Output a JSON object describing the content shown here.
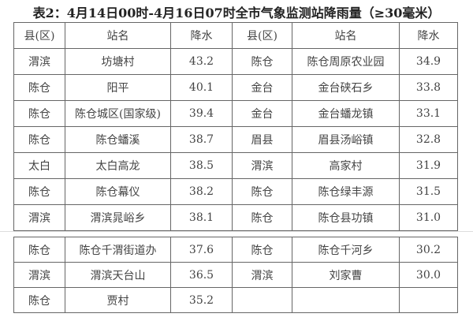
{
  "title": "表2：4月14日00时-4月16日07时全市气象监测站降雨量（≥30毫米）",
  "headers": [
    "县(区)",
    "站名",
    "降水",
    "县(区)",
    "站名",
    "降水"
  ],
  "table1_rows": [
    [
      "渭滨",
      "坊塘村",
      "43.2",
      "陈仓",
      "陈仓周原农业园",
      "34.9"
    ],
    [
      "陈仓",
      "阳平",
      "40.1",
      "金台",
      "金台硖石乡",
      "33.8"
    ],
    [
      "陈仓",
      "陈仓城区(国家级)",
      "39.4",
      "金台",
      "金台蟠龙镇",
      "33.1"
    ],
    [
      "陈仓",
      "陈仓蟠溪",
      "38.7",
      "眉县",
      "眉县汤峪镇",
      "32.8"
    ],
    [
      "太白",
      "太白高龙",
      "38.5",
      "渭滨",
      "高家村",
      "31.9"
    ],
    [
      "陈仓",
      "陈仓幕仪",
      "38.2",
      "陈仓",
      "陈仓绿丰源",
      "31.5"
    ],
    [
      "渭滨",
      "渭滨晁峪乡",
      "38.1",
      "陈仓",
      "陈仓县功镇",
      "31.0"
    ]
  ],
  "table2_rows": [
    [
      "陈仓",
      "陈仓千渭街道办",
      "37.6",
      "陈仓",
      "陈仓千河乡",
      "30.2"
    ],
    [
      "渭滨",
      "渭滨天台山",
      "36.5",
      "渭滨",
      "刘家曹",
      "30.0"
    ],
    [
      "陈仓",
      "贾村",
      "35.2",
      "",
      "",
      ""
    ]
  ]
}
